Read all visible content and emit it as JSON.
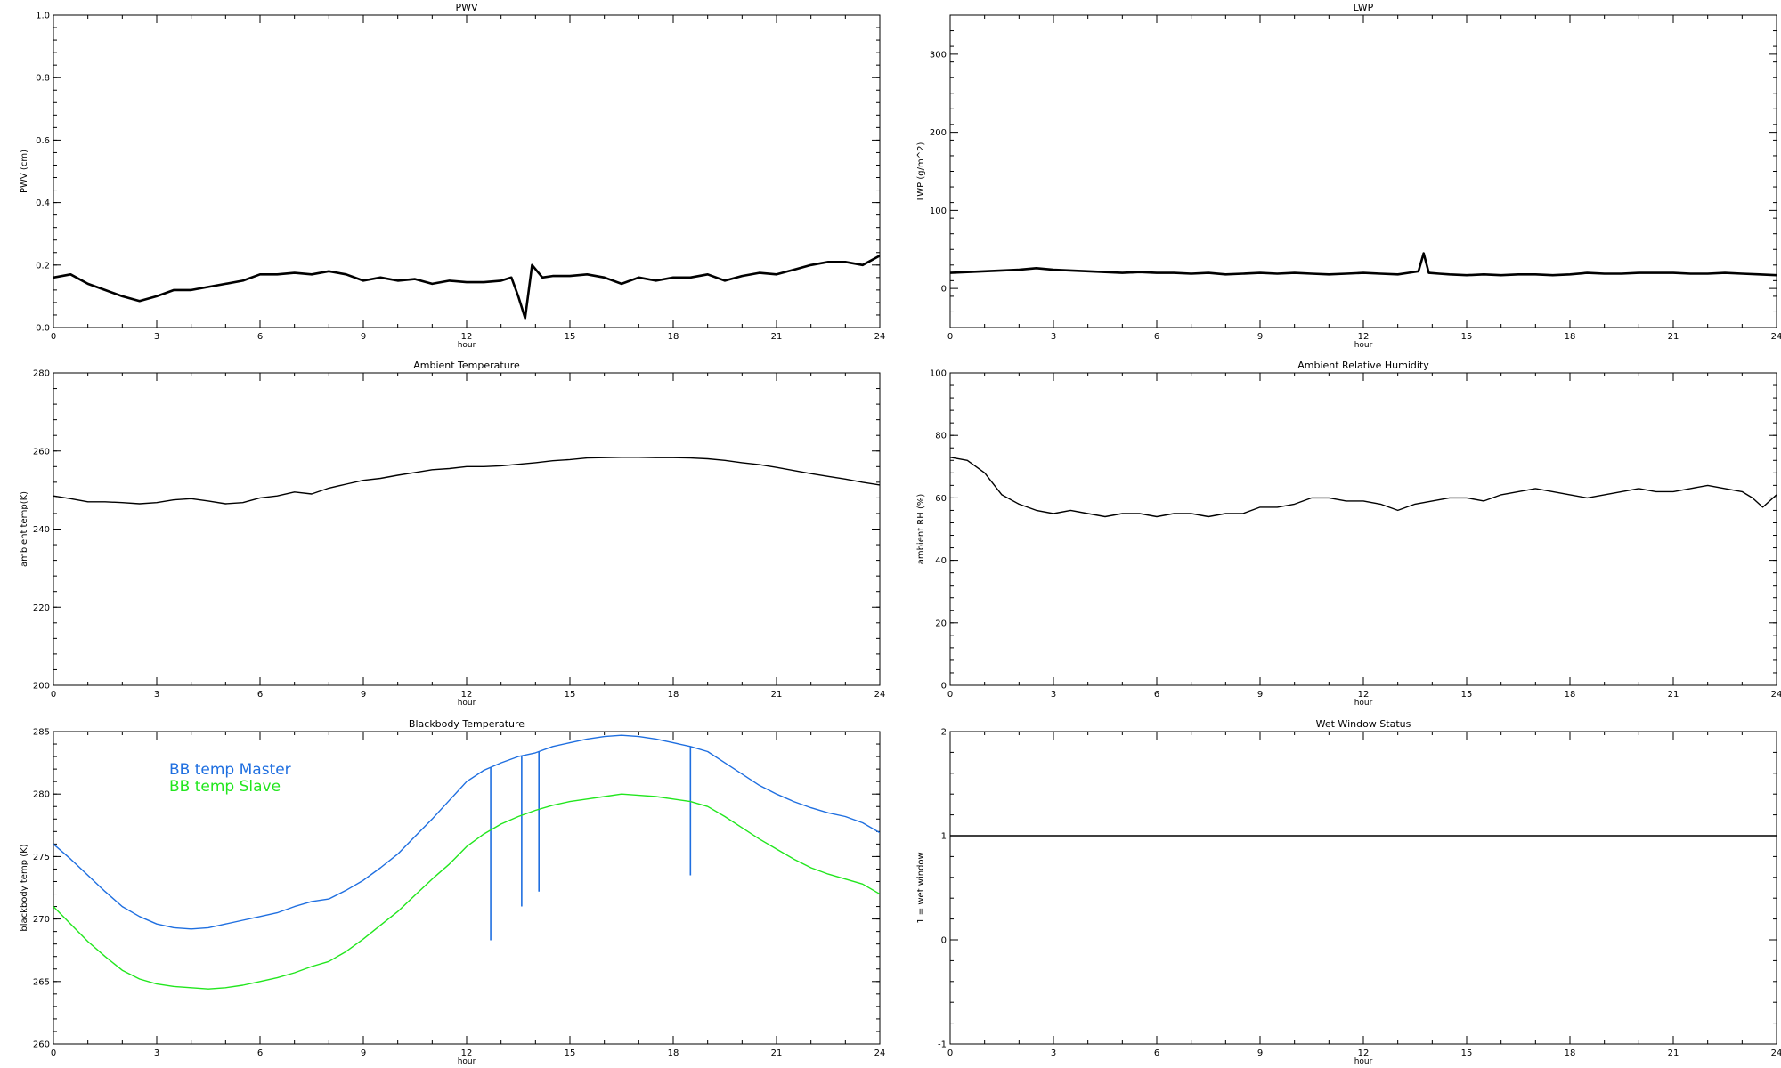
{
  "x_axis": {
    "label": "hour",
    "ticks": [
      "0",
      "3",
      "6",
      "9",
      "12",
      "15",
      "18",
      "21",
      "24"
    ],
    "range": [
      0,
      24
    ]
  },
  "chart_data": [
    {
      "type": "scatter",
      "title": "PWV",
      "ylabel": "PWV (cm)",
      "xlabel": "hour",
      "ylim": [
        0.0,
        1.0
      ],
      "yticks": [
        "0.0",
        "0.2",
        "0.4",
        "0.6",
        "0.8",
        "1.0"
      ],
      "series": [
        {
          "color": "#000000",
          "x": [
            0,
            0.5,
            1,
            1.5,
            2,
            2.5,
            3,
            3.5,
            4,
            4.5,
            5,
            5.5,
            6,
            6.5,
            7,
            7.5,
            8,
            8.5,
            9,
            9.5,
            10,
            10.5,
            11,
            11.5,
            12,
            12.5,
            13,
            13.3,
            13.5,
            13.7,
            13.9,
            14.2,
            14.5,
            15,
            15.5,
            16,
            16.5,
            17,
            17.5,
            18,
            18.5,
            19,
            19.5,
            20,
            20.5,
            21,
            21.5,
            22,
            22.5,
            23,
            23.5,
            24
          ],
          "y": [
            0.16,
            0.17,
            0.14,
            0.12,
            0.1,
            0.085,
            0.1,
            0.12,
            0.12,
            0.13,
            0.14,
            0.15,
            0.17,
            0.17,
            0.175,
            0.17,
            0.18,
            0.17,
            0.15,
            0.16,
            0.15,
            0.155,
            0.14,
            0.15,
            0.145,
            0.145,
            0.15,
            0.16,
            0.1,
            0.03,
            0.2,
            0.16,
            0.165,
            0.165,
            0.17,
            0.16,
            0.14,
            0.16,
            0.15,
            0.16,
            0.16,
            0.17,
            0.15,
            0.165,
            0.175,
            0.17,
            0.185,
            0.2,
            0.21,
            0.21,
            0.2,
            0.23
          ]
        }
      ]
    },
    {
      "type": "scatter",
      "title": "LWP",
      "ylabel": "LWP (g/m^2)",
      "xlabel": "hour",
      "ylim": [
        -50,
        350
      ],
      "yticks": [
        "0",
        "100",
        "200",
        "300"
      ],
      "series": [
        {
          "color": "#000000",
          "x": [
            0,
            0.5,
            1,
            1.5,
            2,
            2.5,
            3,
            3.5,
            4,
            4.5,
            5,
            5.5,
            6,
            6.5,
            7,
            7.5,
            8,
            8.5,
            9,
            9.5,
            10,
            10.5,
            11,
            11.5,
            12,
            12.5,
            13,
            13.3,
            13.6,
            13.75,
            13.9,
            14.2,
            14.5,
            15,
            15.5,
            16,
            16.5,
            17,
            17.5,
            18,
            18.5,
            19,
            19.5,
            20,
            20.5,
            21,
            21.5,
            22,
            22.5,
            23,
            23.5,
            24
          ],
          "y": [
            20,
            21,
            22,
            23,
            24,
            26,
            24,
            23,
            22,
            21,
            20,
            21,
            20,
            20,
            19,
            20,
            18,
            19,
            20,
            19,
            20,
            19,
            18,
            19,
            20,
            19,
            18,
            20,
            22,
            45,
            20,
            19,
            18,
            17,
            18,
            17,
            18,
            18,
            17,
            18,
            20,
            19,
            19,
            20,
            20,
            20,
            19,
            19,
            20,
            19,
            18,
            17
          ]
        }
      ]
    },
    {
      "type": "line",
      "title": "Ambient Temperature",
      "ylabel": "ambient temp(K)",
      "xlabel": "hour",
      "ylim": [
        200,
        280
      ],
      "yticks": [
        "200",
        "220",
        "240",
        "260",
        "280"
      ],
      "series": [
        {
          "color": "#000000",
          "x": [
            0,
            0.5,
            1,
            1.5,
            2,
            2.5,
            3,
            3.5,
            4,
            4.5,
            5,
            5.5,
            6,
            6.5,
            7,
            7.5,
            8,
            8.5,
            9,
            9.5,
            10,
            10.5,
            11,
            11.5,
            12,
            12.5,
            13,
            13.5,
            14,
            14.5,
            15,
            15.5,
            16,
            16.5,
            17,
            17.5,
            18,
            18.5,
            19,
            19.5,
            20,
            20.5,
            21,
            21.5,
            22,
            22.5,
            23,
            23.5,
            24
          ],
          "y": [
            248.5,
            247.8,
            247,
            247,
            246.8,
            246.5,
            246.8,
            247.5,
            247.8,
            247.2,
            246.5,
            246.8,
            248,
            248.5,
            249.5,
            249,
            250.5,
            251.5,
            252.5,
            253,
            253.8,
            254.5,
            255.2,
            255.5,
            256,
            256,
            256.2,
            256.6,
            257,
            257.5,
            257.8,
            258.2,
            258.3,
            258.4,
            258.4,
            258.3,
            258.3,
            258.2,
            258,
            257.6,
            257,
            256.5,
            255.8,
            255,
            254.2,
            253.5,
            252.8,
            252,
            251.3
          ]
        }
      ]
    },
    {
      "type": "line",
      "title": "Ambient Relative Humidity",
      "ylabel": "ambient RH (%)",
      "xlabel": "hour",
      "ylim": [
        0,
        100
      ],
      "yticks": [
        "0",
        "20",
        "40",
        "60",
        "80",
        "100"
      ],
      "series": [
        {
          "color": "#000000",
          "x": [
            0,
            0.5,
            1,
            1.5,
            2,
            2.5,
            3,
            3.5,
            4,
            4.5,
            5,
            5.5,
            6,
            6.5,
            7,
            7.5,
            8,
            8.5,
            9,
            9.5,
            10,
            10.5,
            11,
            11.5,
            12,
            12.5,
            13,
            13.5,
            14,
            14.5,
            15,
            15.5,
            16,
            16.5,
            17,
            17.5,
            18,
            18.5,
            19,
            19.5,
            20,
            20.5,
            21,
            21.5,
            22,
            22.5,
            23,
            23.3,
            23.6,
            24
          ],
          "y": [
            73,
            72,
            68,
            61,
            58,
            56,
            55,
            56,
            55,
            54,
            55,
            55,
            54,
            55,
            55,
            54,
            55,
            55,
            57,
            57,
            58,
            60,
            60,
            59,
            59,
            58,
            56,
            58,
            59,
            60,
            60,
            59,
            61,
            62,
            63,
            62,
            61,
            60,
            61,
            62,
            63,
            62,
            62,
            63,
            64,
            63,
            62,
            60,
            57,
            61
          ]
        }
      ]
    },
    {
      "type": "line",
      "title": "Blackbody Temperature",
      "ylabel": "blackbody temp (K)",
      "xlabel": "hour",
      "ylim": [
        260,
        285
      ],
      "yticks": [
        "260",
        "265",
        "270",
        "275",
        "280",
        "285"
      ],
      "series": [
        {
          "name": "BB temp Master",
          "color": "#1f6fe0",
          "x": [
            0,
            0.5,
            1,
            1.5,
            2,
            2.5,
            3,
            3.5,
            4,
            4.5,
            5,
            5.5,
            6,
            6.5,
            7,
            7.5,
            8,
            8.5,
            9,
            9.5,
            10,
            10.5,
            11,
            11.5,
            12,
            12.5,
            13,
            13.5,
            14,
            14.5,
            15,
            15.5,
            16,
            16.5,
            17,
            17.5,
            18,
            18.5,
            19,
            19.5,
            20,
            20.5,
            21,
            21.5,
            22,
            22.5,
            23,
            23.5,
            24
          ],
          "y": [
            276,
            274.8,
            273.5,
            272.2,
            271,
            270.2,
            269.6,
            269.3,
            269.2,
            269.3,
            269.6,
            269.9,
            270.2,
            270.5,
            271,
            271.4,
            271.6,
            272.3,
            273.1,
            274.1,
            275.2,
            276.6,
            278,
            279.5,
            281,
            281.9,
            282.5,
            283,
            283.3,
            283.8,
            284.1,
            284.4,
            284.6,
            284.7,
            284.6,
            284.4,
            284.1,
            283.8,
            283.4,
            282.5,
            281.6,
            280.7,
            280,
            279.4,
            278.9,
            278.5,
            278.2,
            277.7,
            276.9
          ],
          "spikes": [
            {
              "x": 12.7,
              "y": 268.3
            },
            {
              "x": 13.6,
              "y": 271.0
            },
            {
              "x": 14.1,
              "y": 272.2
            },
            {
              "x": 18.5,
              "y": 273.5
            }
          ]
        },
        {
          "name": "BB temp Slave",
          "color": "#22e61e",
          "x": [
            0,
            0.5,
            1,
            1.5,
            2,
            2.5,
            3,
            3.5,
            4,
            4.5,
            5,
            5.5,
            6,
            6.5,
            7,
            7.5,
            8,
            8.5,
            9,
            9.5,
            10,
            10.5,
            11,
            11.5,
            12,
            12.5,
            13,
            13.5,
            14,
            14.5,
            15,
            15.5,
            16,
            16.5,
            17,
            17.5,
            18,
            18.5,
            19,
            19.5,
            20,
            20.5,
            21,
            21.5,
            22,
            22.5,
            23,
            23.5,
            24
          ],
          "y": [
            271,
            269.6,
            268.2,
            267,
            265.9,
            265.2,
            264.8,
            264.6,
            264.5,
            264.4,
            264.5,
            264.7,
            265,
            265.3,
            265.7,
            266.2,
            266.6,
            267.4,
            268.4,
            269.5,
            270.6,
            271.9,
            273.2,
            274.4,
            275.8,
            276.8,
            277.6,
            278.2,
            278.7,
            279.1,
            279.4,
            279.6,
            279.8,
            280,
            279.9,
            279.8,
            279.6,
            279.4,
            279,
            278.2,
            277.3,
            276.4,
            275.6,
            274.8,
            274.1,
            273.6,
            273.2,
            272.8,
            272
          ]
        }
      ]
    },
    {
      "type": "line",
      "title": "Wet Window Status",
      "ylabel": "1 = wet window",
      "xlabel": "hour",
      "ylim": [
        -1,
        2
      ],
      "yticks": [
        "-1",
        "0",
        "1",
        "2"
      ],
      "series": [
        {
          "color": "#000000",
          "x": [
            0,
            24
          ],
          "y": [
            1,
            1
          ]
        }
      ]
    }
  ]
}
